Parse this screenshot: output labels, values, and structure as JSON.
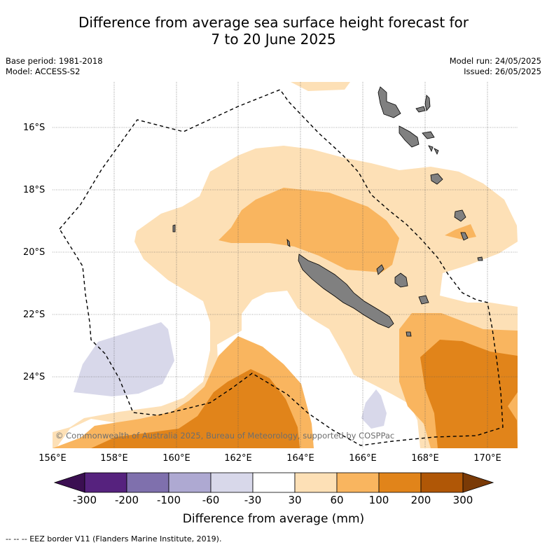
{
  "title": {
    "line1": "Difference from average sea surface height forecast for",
    "line2": "7 to 20 June 2025"
  },
  "meta_left": {
    "base_period": "Base period: 1981-2018",
    "model": "Model: ACCESS-S2"
  },
  "meta_right": {
    "model_run": "Model run: 24/05/2025",
    "issued": "Issued: 26/05/2025"
  },
  "map": {
    "lat_labels": [
      "16°S",
      "18°S",
      "20°S",
      "22°S",
      "24°S"
    ],
    "lon_labels": [
      "156°E",
      "158°E",
      "160°E",
      "162°E",
      "164°E",
      "166°E",
      "168°E",
      "170°E"
    ],
    "copyright": "© Commonwealth of Australia 2025, Bureau of Meteorology, supported by COSPPac",
    "colors": {
      "ocean_neutral": "#ffffff",
      "land": "#808080",
      "band_30_60": "#fde0b6",
      "band_60_100": "#f9b55f",
      "band_100_200": "#e1841a",
      "band_neg_60_30": "#d8d8ea"
    }
  },
  "colorbar": {
    "tick_labels": [
      "-300",
      "-200",
      "-100",
      "-60",
      "-30",
      "30",
      "60",
      "100",
      "200",
      "300"
    ],
    "colors": [
      "#3b0f52",
      "#56227e",
      "#7f70ad",
      "#aea9d2",
      "#d8d8ea",
      "#ffffff",
      "#fde0b6",
      "#f9b55f",
      "#e1841a",
      "#b05706",
      "#7a3a06"
    ],
    "title": "Difference from average (mm)"
  },
  "footnote": "-- -- -- EEZ border V11 (Flanders Marine Institute, 2019)."
}
